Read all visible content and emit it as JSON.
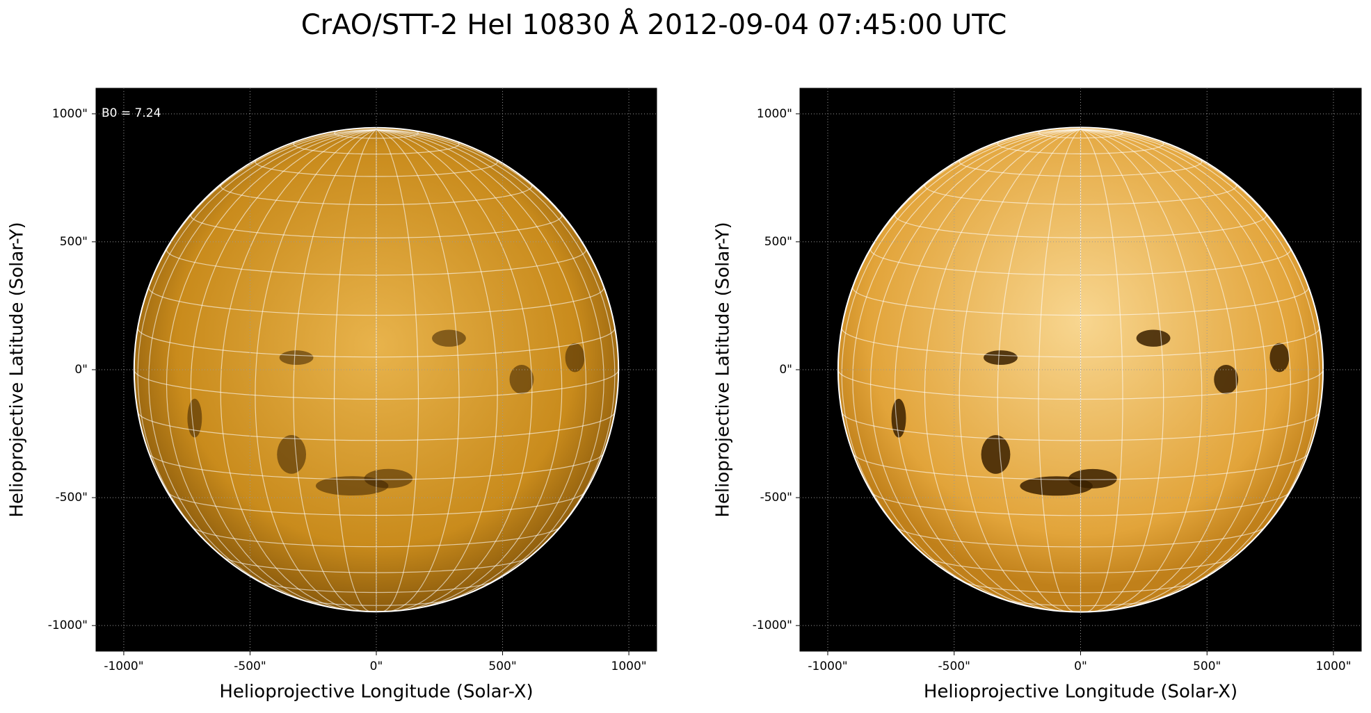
{
  "title": "CrAO/STT-2 HeI 10830 Å 2012-09-04 07:45:00 UTC",
  "chart_data": [
    {
      "type": "image",
      "xlabel": "Helioprojective Longitude (Solar-X)",
      "ylabel": "Helioprojective Latitude (Solar-Y)",
      "xlim": [
        -1110,
        1110
      ],
      "ylim": [
        -1100,
        1100
      ],
      "xticks": [
        {
          "value": -1000,
          "label": "-1000\""
        },
        {
          "value": -500,
          "label": "-500\""
        },
        {
          "value": 0,
          "label": "0\""
        },
        {
          "value": 500,
          "label": "500\""
        },
        {
          "value": 1000,
          "label": "1000\""
        }
      ],
      "yticks": [
        {
          "value": -1000,
          "label": "-1000\""
        },
        {
          "value": -500,
          "label": "-500\""
        },
        {
          "value": 0,
          "label": "0\""
        },
        {
          "value": 500,
          "label": "500\""
        },
        {
          "value": 1000,
          "label": "1000\""
        }
      ],
      "grid": true,
      "annotation": "B0 = 7.24"
    },
    {
      "type": "image",
      "xlabel": "Helioprojective Longitude (Solar-X)",
      "ylabel": "Helioprojective Latitude (Solar-Y)",
      "xlim": [
        -1110,
        1110
      ],
      "ylim": [
        -1100,
        1100
      ],
      "xticks": [
        {
          "value": -1000,
          "label": "-1000\""
        },
        {
          "value": -500,
          "label": "-500\""
        },
        {
          "value": 0,
          "label": "0\""
        },
        {
          "value": 500,
          "label": "500\""
        },
        {
          "value": 1000,
          "label": "1000\""
        }
      ],
      "yticks": [
        {
          "value": -1000,
          "label": "-1000\""
        },
        {
          "value": -500,
          "label": "-500\""
        },
        {
          "value": 0,
          "label": "0\""
        },
        {
          "value": 500,
          "label": "500\""
        },
        {
          "value": 1000,
          "label": "1000\""
        }
      ],
      "grid": true
    }
  ]
}
